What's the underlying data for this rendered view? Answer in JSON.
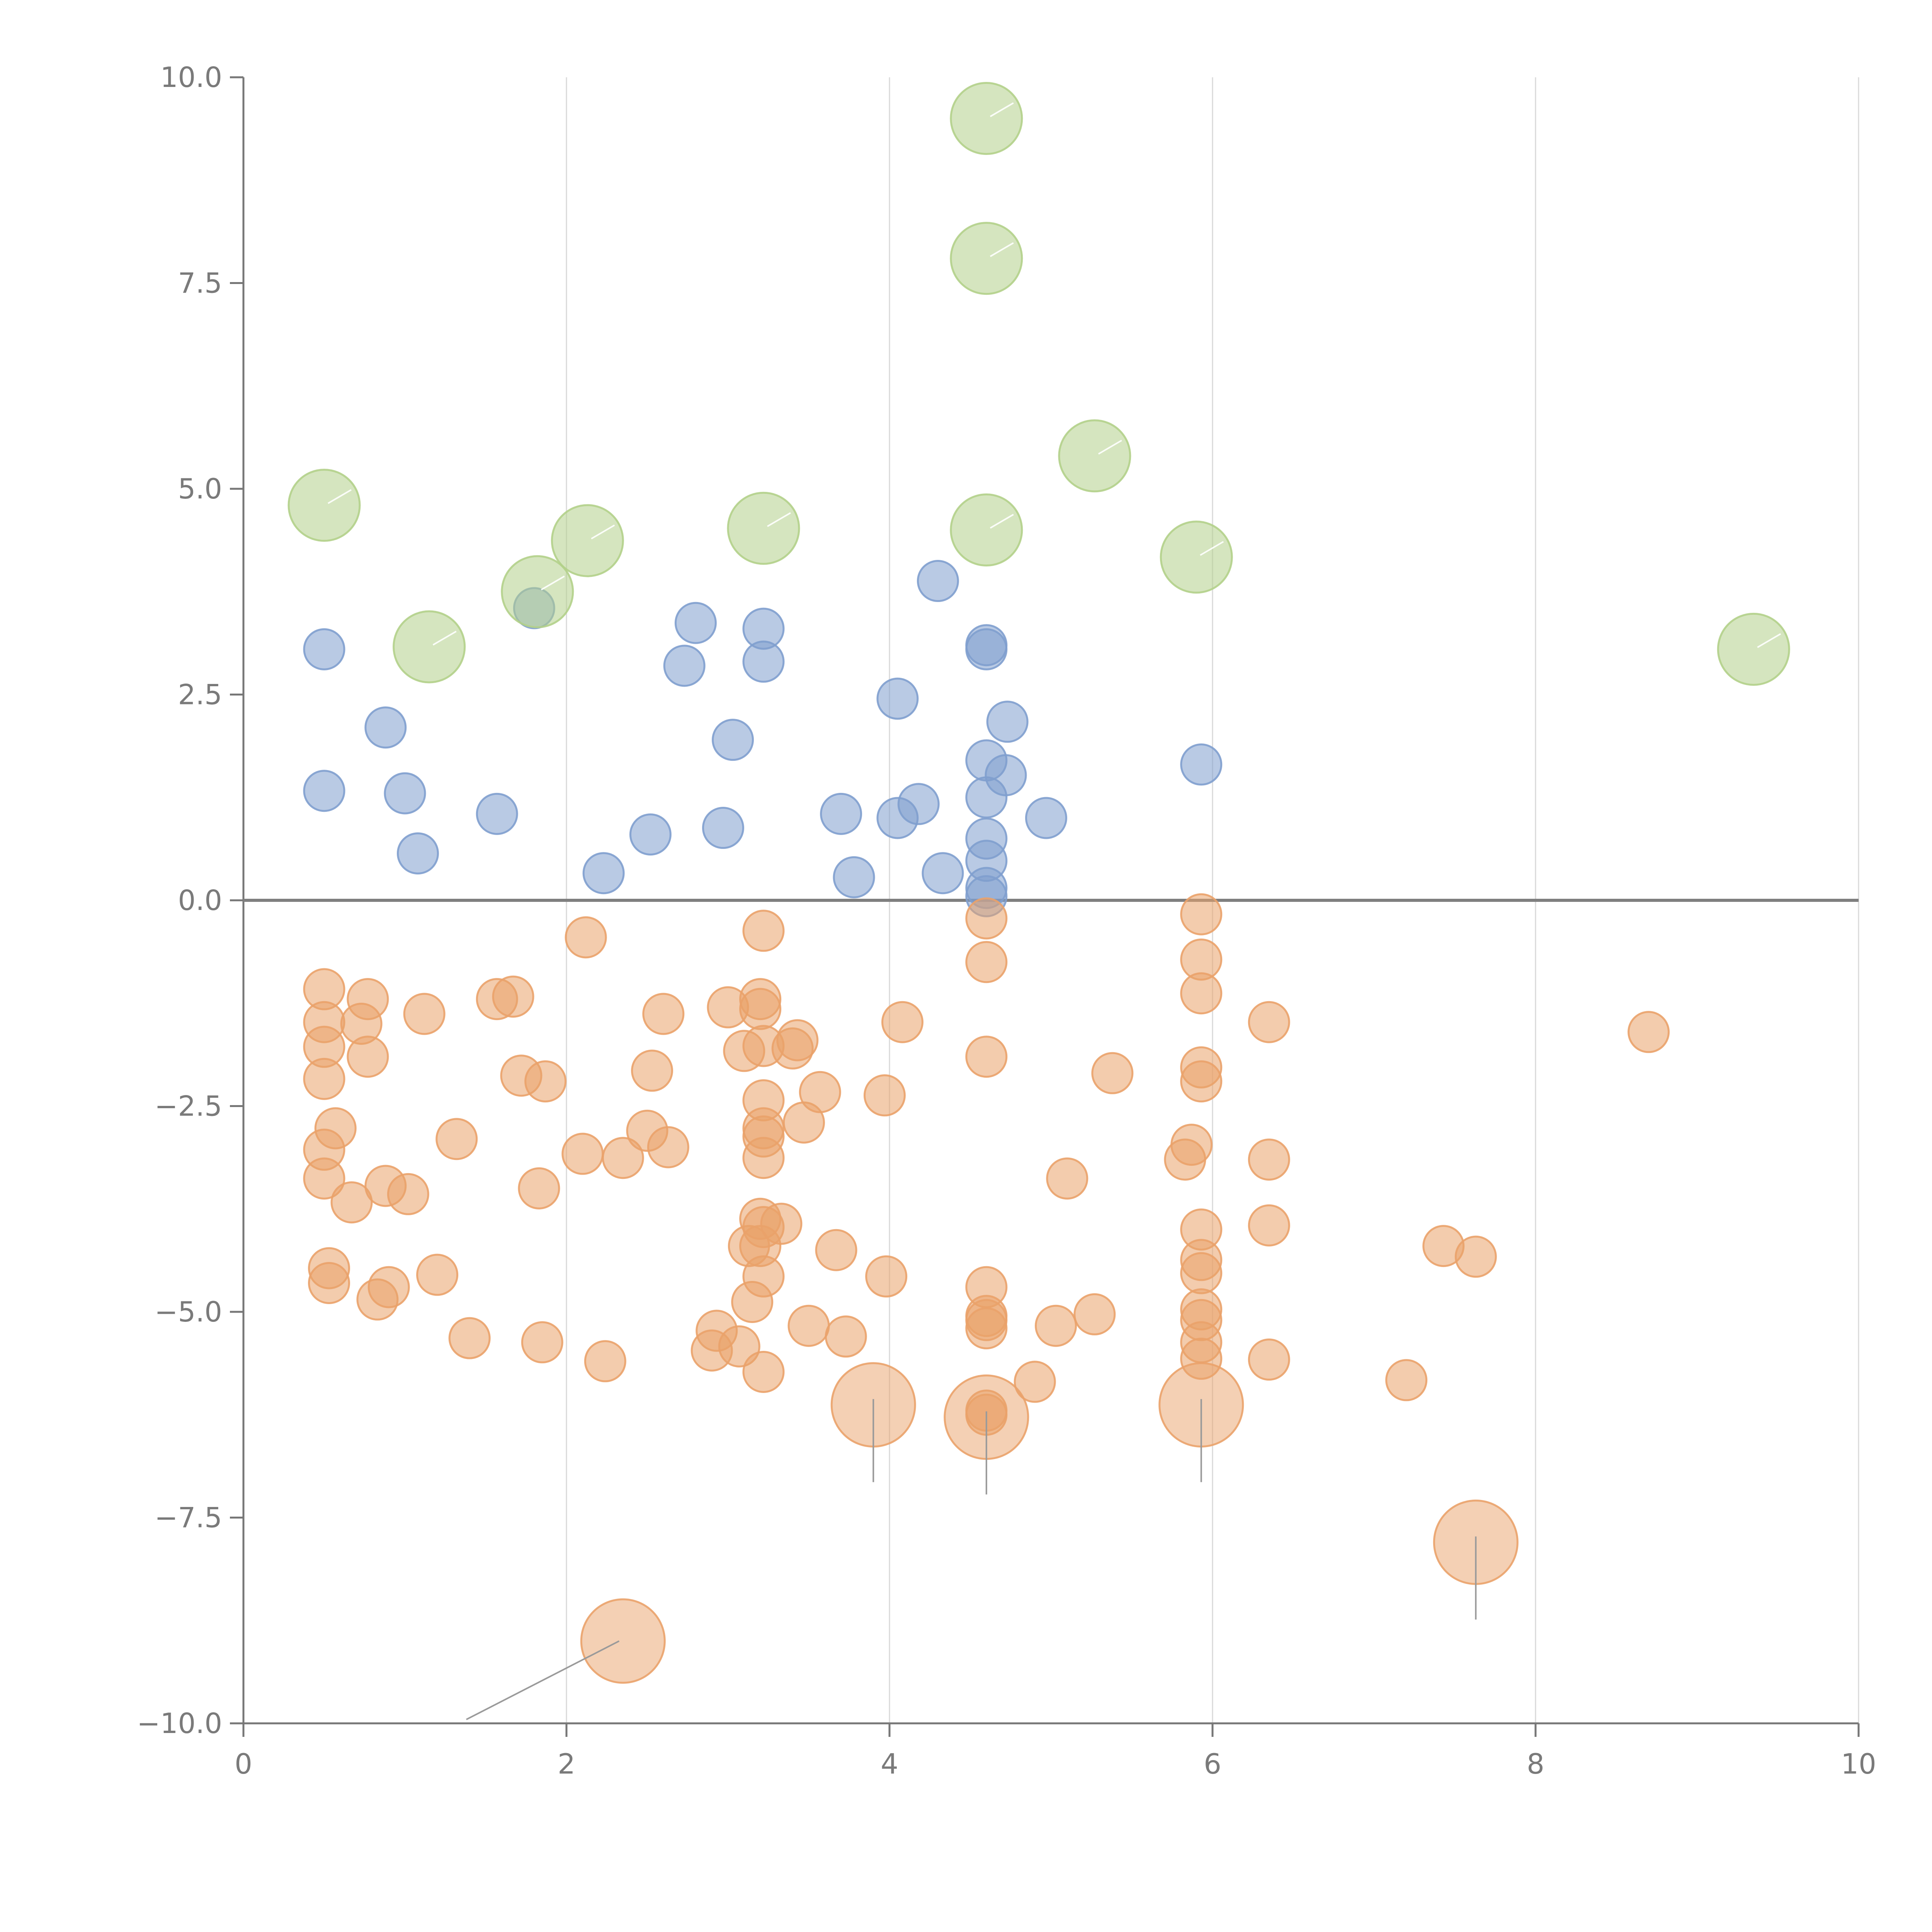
{
  "chart_data": {
    "type": "scatter",
    "title": "",
    "xlabel": "",
    "ylabel": "",
    "xlim": [
      0,
      10
    ],
    "ylim": [
      -10,
      10
    ],
    "x_ticks": [
      "0",
      "2",
      "4",
      "6",
      "8",
      "10"
    ],
    "y_ticks": [
      "−10.0",
      "−7.5",
      "−5.0",
      "−2.5",
      "0.0",
      "2.5",
      "5.0",
      "7.5",
      "10.0"
    ],
    "grid": "vertical",
    "reference_line_y": 0,
    "colors": {
      "blue": "#7f9fce",
      "green": "#b2d08a",
      "orange": "#eaa26a",
      "axis": "#777777",
      "grid": "#d9d9d9"
    },
    "series": [
      {
        "name": "blue",
        "color": "#7f9fce",
        "points": [
          [
            0.5,
            3.05
          ],
          [
            0.5,
            1.33
          ],
          [
            0.88,
            2.1
          ],
          [
            1.0,
            1.3
          ],
          [
            1.08,
            0.57
          ],
          [
            1.57,
            1.05
          ],
          [
            1.8,
            3.55
          ],
          [
            2.23,
            0.33
          ],
          [
            2.52,
            0.8
          ],
          [
            2.73,
            2.85
          ],
          [
            2.8,
            3.37
          ],
          [
            2.97,
            0.88
          ],
          [
            3.03,
            1.95
          ],
          [
            3.22,
            3.3
          ],
          [
            3.22,
            2.9
          ],
          [
            3.7,
            1.05
          ],
          [
            3.78,
            0.28
          ],
          [
            4.05,
            2.45
          ],
          [
            4.05,
            1.0
          ],
          [
            4.18,
            1.17
          ],
          [
            4.3,
            3.88
          ],
          [
            4.33,
            0.33
          ],
          [
            4.6,
            3.1
          ],
          [
            4.6,
            3.05
          ],
          [
            4.6,
            1.7
          ],
          [
            4.6,
            1.25
          ],
          [
            4.6,
            0.75
          ],
          [
            4.6,
            0.48
          ],
          [
            4.6,
            0.15
          ],
          [
            4.6,
            0.05
          ],
          [
            4.72,
            1.52
          ],
          [
            4.73,
            2.17
          ],
          [
            4.97,
            1.0
          ],
          [
            5.93,
            1.65
          ]
        ]
      },
      {
        "name": "green",
        "color": "#b2d08a",
        "points": [
          [
            0.5,
            4.8
          ],
          [
            1.15,
            3.08
          ],
          [
            1.82,
            3.75
          ],
          [
            2.13,
            4.37
          ],
          [
            3.22,
            4.52
          ],
          [
            4.6,
            9.5
          ],
          [
            4.6,
            7.8
          ],
          [
            4.6,
            4.5
          ],
          [
            5.27,
            5.4
          ],
          [
            5.9,
            4.17
          ],
          [
            9.35,
            3.05
          ]
        ]
      },
      {
        "name": "orange",
        "color": "#eaa26a",
        "points": [
          [
            0.5,
            -1.08
          ],
          [
            0.5,
            -1.48
          ],
          [
            0.5,
            -1.78
          ],
          [
            0.5,
            -2.17
          ],
          [
            0.57,
            -2.77
          ],
          [
            0.5,
            -3.03
          ],
          [
            0.5,
            -3.38
          ],
          [
            0.53,
            -4.47
          ],
          [
            0.53,
            -4.65
          ],
          [
            0.67,
            -3.67
          ],
          [
            0.77,
            -1.2
          ],
          [
            0.73,
            -1.5
          ],
          [
            0.77,
            -1.9
          ],
          [
            0.88,
            -3.47
          ],
          [
            0.83,
            -4.85
          ],
          [
            0.9,
            -4.7
          ],
          [
            1.02,
            -3.57
          ],
          [
            1.12,
            -1.38
          ],
          [
            1.32,
            -2.9
          ],
          [
            1.2,
            -4.55
          ],
          [
            1.4,
            -5.32
          ],
          [
            1.57,
            -1.2
          ],
          [
            1.67,
            -1.17
          ],
          [
            1.72,
            -2.13
          ],
          [
            1.83,
            -3.5
          ],
          [
            1.87,
            -2.2
          ],
          [
            1.85,
            -5.37
          ],
          [
            2.12,
            -0.45
          ],
          [
            2.1,
            -3.08
          ],
          [
            2.24,
            -5.6
          ],
          [
            2.35,
            -3.13
          ],
          [
            2.5,
            -2.8
          ],
          [
            2.53,
            -2.07
          ],
          [
            2.6,
            -1.38
          ],
          [
            2.63,
            -3.0
          ],
          [
            2.93,
            -5.23
          ],
          [
            2.9,
            -5.47
          ],
          [
            3.0,
            -1.3
          ],
          [
            3.07,
            -5.42
          ],
          [
            3.1,
            -1.83
          ],
          [
            3.15,
            -4.88
          ],
          [
            3.13,
            -4.2
          ],
          [
            3.2,
            -1.2
          ],
          [
            3.22,
            -0.37
          ],
          [
            3.2,
            -1.32
          ],
          [
            3.22,
            -1.77
          ],
          [
            3.22,
            -2.43
          ],
          [
            3.22,
            -2.77
          ],
          [
            3.22,
            -2.87
          ],
          [
            3.22,
            -3.13
          ],
          [
            3.2,
            -3.87
          ],
          [
            3.2,
            -4.2
          ],
          [
            3.22,
            -3.97
          ],
          [
            3.22,
            -4.57
          ],
          [
            3.22,
            -5.73
          ],
          [
            3.33,
            -3.93
          ],
          [
            3.4,
            -1.8
          ],
          [
            3.43,
            -1.7
          ],
          [
            3.47,
            -2.7
          ],
          [
            3.5,
            -5.17
          ],
          [
            3.57,
            -2.33
          ],
          [
            3.67,
            -4.25
          ],
          [
            3.73,
            -5.3
          ],
          [
            3.97,
            -2.37
          ],
          [
            3.98,
            -4.57
          ],
          [
            4.08,
            -1.48
          ],
          [
            4.6,
            -0.22
          ],
          [
            4.6,
            -0.75
          ],
          [
            4.6,
            -1.9
          ],
          [
            4.6,
            -4.7
          ],
          [
            4.6,
            -5.05
          ],
          [
            4.6,
            -5.1
          ],
          [
            4.6,
            -5.2
          ],
          [
            4.6,
            -6.25
          ],
          [
            4.6,
            -6.2
          ],
          [
            4.9,
            -5.85
          ],
          [
            5.03,
            -5.17
          ],
          [
            5.1,
            -3.38
          ],
          [
            5.27,
            -5.03
          ],
          [
            5.38,
            -2.1
          ],
          [
            5.83,
            -3.15
          ],
          [
            5.87,
            -2.97
          ],
          [
            5.93,
            -0.17
          ],
          [
            5.93,
            -0.72
          ],
          [
            5.93,
            -1.13
          ],
          [
            5.93,
            -2.03
          ],
          [
            5.93,
            -2.2
          ],
          [
            5.93,
            -4.0
          ],
          [
            5.93,
            -4.37
          ],
          [
            5.93,
            -4.53
          ],
          [
            5.93,
            -4.97
          ],
          [
            5.93,
            -5.1
          ],
          [
            5.93,
            -5.37
          ],
          [
            5.93,
            -5.57
          ],
          [
            6.35,
            -1.48
          ],
          [
            6.35,
            -3.15
          ],
          [
            6.35,
            -3.95
          ],
          [
            6.35,
            -5.58
          ],
          [
            7.2,
            -5.83
          ],
          [
            7.43,
            -4.2
          ],
          [
            7.63,
            -4.33
          ],
          [
            8.7,
            -1.6
          ]
        ],
        "large_points": [
          [
            2.35,
            -9.0
          ],
          [
            3.9,
            -6.13
          ],
          [
            4.6,
            -6.28
          ],
          [
            5.93,
            -6.13
          ],
          [
            7.63,
            -7.8
          ]
        ]
      }
    ]
  }
}
